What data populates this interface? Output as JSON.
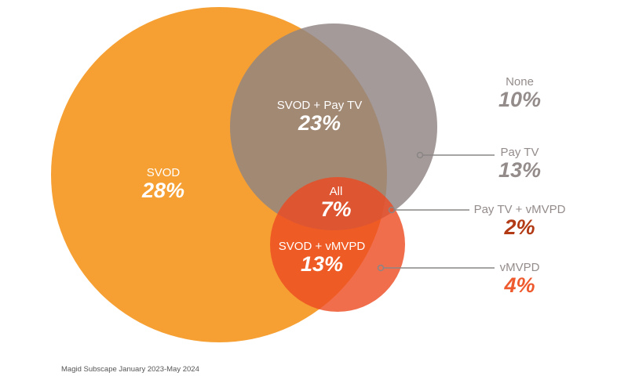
{
  "colors": {
    "svod": "#f6a033",
    "pay_tv": "#8f8483",
    "vmvpd": "#ee5a2e",
    "pay_tv_vmvpd": "#b23a14",
    "none": "#958d8c"
  },
  "regions": {
    "svod": {
      "label": "SVOD",
      "value": "28%"
    },
    "svod_pay_tv": {
      "label": "SVOD + Pay TV",
      "value": "23%"
    },
    "all": {
      "label": "All",
      "value": "7%"
    },
    "svod_vmvpd": {
      "label": "SVOD + vMVPD",
      "value": "13%"
    },
    "none": {
      "label": "None",
      "value": "10%"
    },
    "pay_tv": {
      "label": "Pay TV",
      "value": "13%"
    },
    "pay_tv_vmvpd": {
      "label": "Pay TV + vMVPD",
      "value": "2%"
    },
    "vmvpd": {
      "label": "vMVPD",
      "value": "4%"
    }
  },
  "source": "Magid Subscape January 2023-May 2024"
}
